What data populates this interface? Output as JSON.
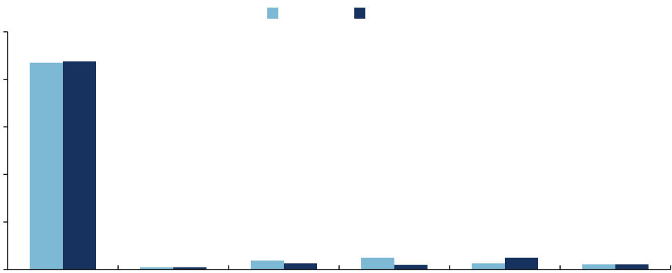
{
  "chart_data": {
    "type": "bar",
    "categories": [
      "",
      "",
      "",
      "",
      "",
      ""
    ],
    "series": [
      {
        "color": "#7db9d4",
        "values": [
          87.0,
          1.0,
          3.8,
          5.0,
          2.6,
          2.2
        ]
      },
      {
        "color": "#17325e",
        "values": [
          87.6,
          1.0,
          2.6,
          2.0,
          5.0,
          2.2
        ]
      }
    ],
    "ylim": [
      0,
      100
    ],
    "yticks": [
      0,
      20,
      40,
      60,
      80,
      100
    ],
    "grid": false,
    "legend": "top-center",
    "title": "",
    "xlabel": "",
    "ylabel": ""
  }
}
